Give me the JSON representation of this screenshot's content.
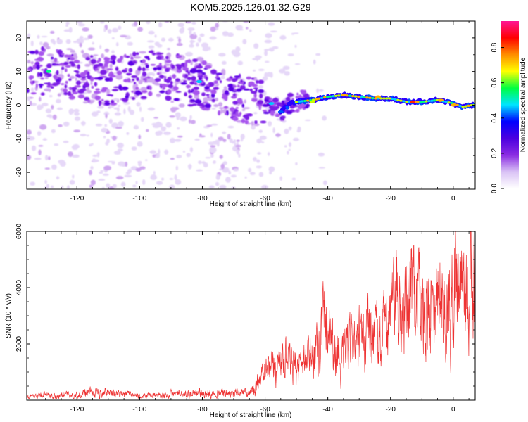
{
  "title": "KOM5.2025.126.01.32.G29",
  "chart_data": [
    {
      "type": "heatmap",
      "xlabel": "Height of straight line (km)",
      "ylabel": "Frequency (Hz)",
      "xlim": [
        -136,
        7
      ],
      "ylim": [
        -25,
        25
      ],
      "xticks": [
        -120,
        -100,
        -80,
        -60,
        -40,
        -20,
        0
      ],
      "yticks": [
        -20,
        -10,
        0,
        10,
        20
      ],
      "grid": false,
      "colorbar": {
        "label": "Normalized spectral amplitude",
        "range": [
          0,
          0.95
        ],
        "ticks": [
          "0.0",
          "0.2",
          "0.4",
          "0.6",
          "0.8"
        ],
        "colors": [
          "#ffffff",
          "#d9c2f5",
          "#8a2be2",
          "#4b00e0",
          "#0000ff",
          "#00e5ff",
          "#00ff40",
          "#ffff00",
          "#ff8c00",
          "#ff0000",
          "#ff1493"
        ]
      },
      "ridge": [
        {
          "x": -130,
          "y": 10
        },
        {
          "x": -125,
          "y": 9.5
        },
        {
          "x": -120,
          "y": 8
        },
        {
          "x": -110,
          "y": 7
        },
        {
          "x": -100,
          "y": 9
        },
        {
          "x": -92,
          "y": 9
        },
        {
          "x": -85,
          "y": 7
        },
        {
          "x": -80,
          "y": 6
        },
        {
          "x": -75,
          "y": 4
        },
        {
          "x": -70,
          "y": 3
        },
        {
          "x": -65,
          "y": 1.5
        },
        {
          "x": -60,
          "y": 1
        },
        {
          "x": -58,
          "y": -1
        },
        {
          "x": -55,
          "y": -2
        },
        {
          "x": -52,
          "y": 0.5
        },
        {
          "x": -50,
          "y": 1
        },
        {
          "x": -45,
          "y": 1.5
        },
        {
          "x": -40,
          "y": 2.5
        },
        {
          "x": -35,
          "y": 3
        },
        {
          "x": -30,
          "y": 2.5
        },
        {
          "x": -25,
          "y": 2
        },
        {
          "x": -20,
          "y": 2
        },
        {
          "x": -15,
          "y": 1
        },
        {
          "x": -10,
          "y": 1
        },
        {
          "x": -5,
          "y": 1.5
        },
        {
          "x": 0,
          "y": 0.5
        },
        {
          "x": 3,
          "y": -0.5
        },
        {
          "x": 6,
          "y": 0
        }
      ]
    },
    {
      "type": "line",
      "xlabel": "Height of straight line (km)",
      "ylabel": "SNR (10 * v/v)",
      "xlim": [
        -136,
        7
      ],
      "ylim": [
        0,
        6000
      ],
      "xticks": [
        -120,
        -100,
        -80,
        -60,
        -40,
        -20,
        0
      ],
      "yticks": [
        2000,
        4000,
        6000
      ],
      "color": "#ee3333",
      "envelope": [
        {
          "x": -136,
          "y": 150
        },
        {
          "x": -120,
          "y": 200
        },
        {
          "x": -113,
          "y": 300
        },
        {
          "x": -100,
          "y": 150
        },
        {
          "x": -80,
          "y": 250
        },
        {
          "x": -65,
          "y": 250
        },
        {
          "x": -62,
          "y": 700
        },
        {
          "x": -58,
          "y": 1200
        },
        {
          "x": -55,
          "y": 1400
        },
        {
          "x": -50,
          "y": 1300
        },
        {
          "x": -45,
          "y": 1600
        },
        {
          "x": -41,
          "y": 2800
        },
        {
          "x": -38,
          "y": 2000
        },
        {
          "x": -35,
          "y": 1500
        },
        {
          "x": -30,
          "y": 2300
        },
        {
          "x": -25,
          "y": 2200
        },
        {
          "x": -20,
          "y": 3000
        },
        {
          "x": -15,
          "y": 3500
        },
        {
          "x": -10,
          "y": 3700
        },
        {
          "x": -5,
          "y": 3400
        },
        {
          "x": 0,
          "y": 3800
        },
        {
          "x": 3,
          "y": 4200
        },
        {
          "x": 7,
          "y": 4800
        }
      ]
    }
  ]
}
